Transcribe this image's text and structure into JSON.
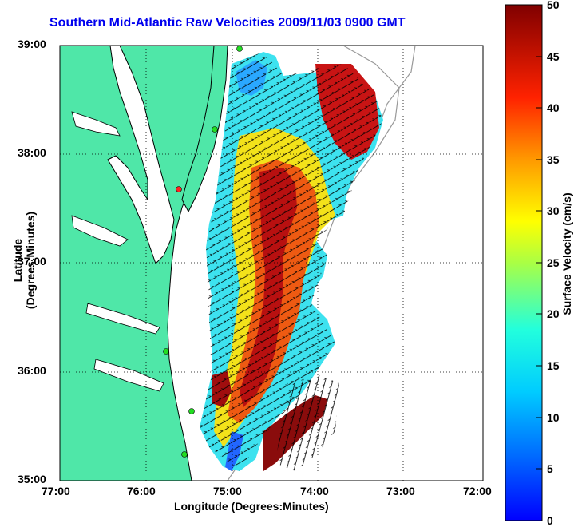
{
  "title": "Southern Mid-Atlantic Raw Velocities 2009/11/03 0900 GMT",
  "axes": {
    "xlabel": "Longitude (Degrees:Minutes)",
    "ylabel": "Latitude (Degrees:Minutes)",
    "x_ticks": [
      "77:00",
      "76:00",
      "75:00",
      "74:00",
      "73:00",
      "72:00"
    ],
    "y_ticks": [
      "39:00",
      "38:00",
      "37:00",
      "36:00",
      "35:00"
    ],
    "xlim": [
      -77,
      -72
    ],
    "ylim": [
      35,
      39
    ],
    "grid": "dotted"
  },
  "colorbar": {
    "label": "Surface Velocity (cm/s)",
    "ticks": [
      "0",
      "5",
      "10",
      "15",
      "20",
      "25",
      "30",
      "35",
      "40",
      "45",
      "50"
    ],
    "range": [
      0,
      50
    ],
    "colormap": "jet"
  },
  "colors": {
    "land": "#4fe7a8",
    "water": "#ffffff",
    "title": "#0000ee",
    "coastline": "#000000",
    "shelf_contour": "#999999",
    "station_marker": "#22dd22",
    "station_marker_active": "#ff2222"
  },
  "stations": {
    "count": 6,
    "marker": "circle"
  }
}
